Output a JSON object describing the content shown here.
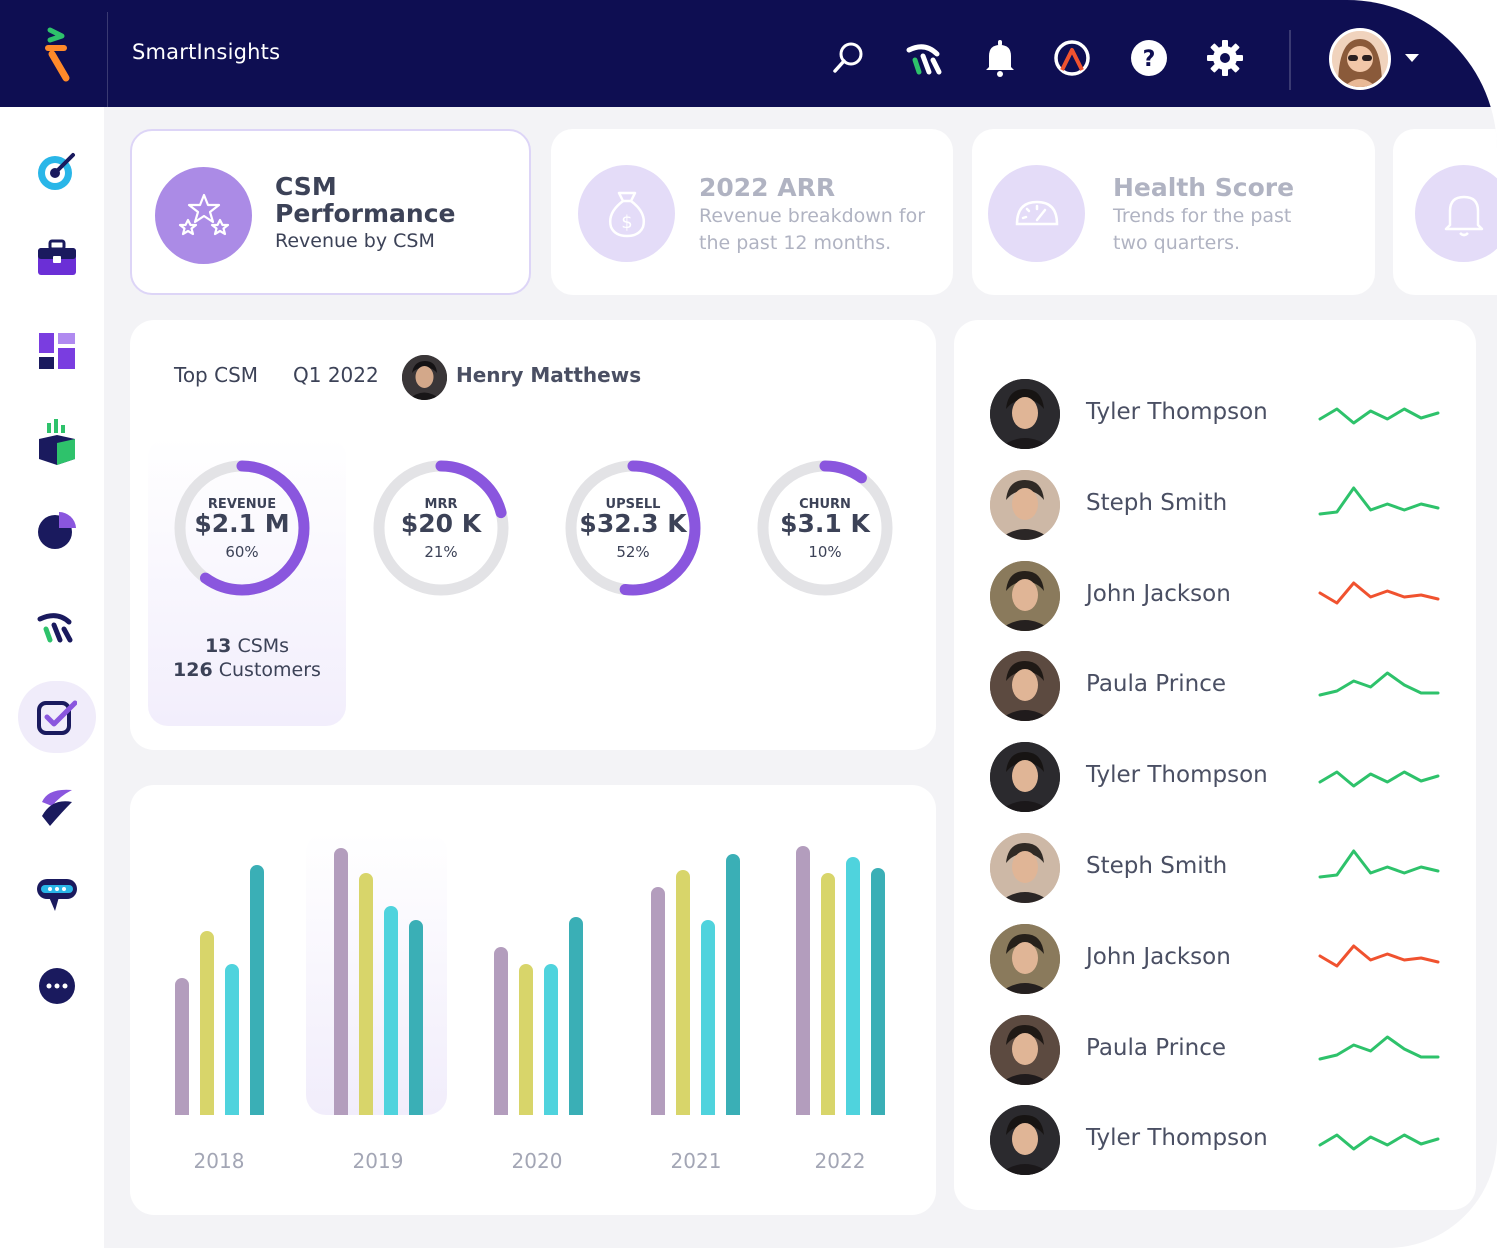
{
  "app": {
    "title": "SmartInsights"
  },
  "topbar": {
    "icons": [
      "search-icon",
      "brand-mark-icon",
      "bell-icon",
      "support-icon",
      "help-icon",
      "gear-icon"
    ],
    "user_menu": "chevron-down-icon"
  },
  "sidebar": {
    "items": [
      {
        "icon": "target-icon"
      },
      {
        "icon": "briefcase-icon"
      },
      {
        "icon": "dashboard-icon"
      },
      {
        "icon": "growth-box-icon"
      },
      {
        "icon": "pie-chart-icon"
      },
      {
        "icon": "brand-mark-icon"
      },
      {
        "icon": "checklist-icon",
        "active": true
      },
      {
        "icon": "swirl-icon"
      },
      {
        "icon": "chat-icon"
      },
      {
        "icon": "more-icon"
      }
    ]
  },
  "cards": [
    {
      "title": "CSM Performance",
      "title_l1": "CSM",
      "title_l2": "Performance",
      "subtitle": "Revenue by CSM",
      "icon": "stars-icon",
      "active": true
    },
    {
      "title": "2022 ARR",
      "subtitle_l1": "Revenue breakdown for",
      "subtitle_l2": "the past 12 months.",
      "icon": "money-bag-icon"
    },
    {
      "title": "Health Score",
      "subtitle_l1": "Trends for the past",
      "subtitle_l2": "two quarters.",
      "icon": "gauge-icon"
    },
    {
      "icon": "bell-icon"
    }
  ],
  "performance": {
    "label": "Top CSM",
    "period": "Q1 2022",
    "top_csm": "Henry Matthews",
    "metrics": [
      {
        "key": "REVENUE",
        "value": "$2.1 M",
        "pct": "60%",
        "fraction": 0.6
      },
      {
        "key": "MRR",
        "value": "$20 K",
        "pct": "21%",
        "fraction": 0.21
      },
      {
        "key": "UPSELL",
        "value": "$32.3 K",
        "pct": "52%",
        "fraction": 0.52
      },
      {
        "key": "CHURN",
        "value": "$3.1 K",
        "pct": "10%",
        "fraction": 0.1
      }
    ],
    "csms_count": "13",
    "csms_label": "CSMs",
    "customers_count": "126",
    "customers_label": "Customers"
  },
  "chart_data": {
    "type": "bar",
    "categories": [
      "2018",
      "2019",
      "2020",
      "2021",
      "2022"
    ],
    "series": [
      {
        "color": "#b39dbd",
        "values": [
          50,
          97,
          61,
          83,
          98
        ]
      },
      {
        "color": "#d8d56a",
        "values": [
          67,
          88,
          55,
          89,
          88
        ]
      },
      {
        "color": "#4fd3dd",
        "values": [
          55,
          76,
          55,
          71,
          94
        ]
      },
      {
        "color": "#3aafb6",
        "values": [
          91,
          71,
          72,
          95,
          90
        ]
      }
    ],
    "ylim": [
      0,
      100
    ],
    "highlight": "2019"
  },
  "csm_list": [
    {
      "name": "Tyler Thompson",
      "trend": [
        8,
        18,
        4,
        16,
        8,
        18,
        9,
        14
      ],
      "color": "#2ec26b",
      "avatar": "#2b2a2e"
    },
    {
      "name": "Steph Smith",
      "trend": [
        4,
        6,
        30,
        8,
        14,
        8,
        14,
        10
      ],
      "color": "#2ec26b",
      "avatar": "#cdb8a6"
    },
    {
      "name": "John Jackson",
      "trend": [
        16,
        6,
        26,
        12,
        18,
        12,
        14,
        10
      ],
      "color": "#f0522f",
      "avatar": "#8a7a5c"
    },
    {
      "name": "Paula Prince",
      "trend": [
        4,
        8,
        18,
        12,
        26,
        14,
        6,
        6
      ],
      "color": "#2ec26b",
      "avatar": "#5c4a40"
    },
    {
      "name": "Tyler Thompson",
      "trend": [
        8,
        18,
        4,
        16,
        8,
        18,
        9,
        14
      ],
      "color": "#2ec26b",
      "avatar": "#2b2a2e"
    },
    {
      "name": "Steph Smith",
      "trend": [
        4,
        6,
        30,
        8,
        14,
        8,
        14,
        10
      ],
      "color": "#2ec26b",
      "avatar": "#cdb8a6"
    },
    {
      "name": "John Jackson",
      "trend": [
        16,
        6,
        26,
        12,
        18,
        12,
        14,
        10
      ],
      "color": "#f0522f",
      "avatar": "#8a7a5c"
    },
    {
      "name": "Paula Prince",
      "trend": [
        4,
        8,
        18,
        12,
        26,
        14,
        6,
        6
      ],
      "color": "#2ec26b",
      "avatar": "#5c4a40"
    },
    {
      "name": "Tyler Thompson",
      "trend": [
        8,
        18,
        4,
        16,
        8,
        18,
        9,
        14
      ],
      "color": "#2ec26b",
      "avatar": "#2b2a2e"
    }
  ],
  "colors": {
    "navy": "#0e0e52",
    "purple": "#8a56de",
    "purple_light": "#e4dcf8",
    "green": "#2ec26b",
    "red": "#f0522f"
  }
}
